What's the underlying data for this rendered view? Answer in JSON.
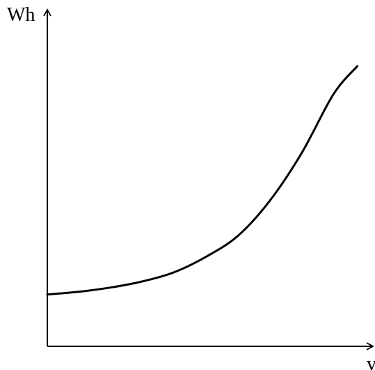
{
  "chart_data": {
    "type": "line",
    "title": "",
    "xlabel": "v",
    "ylabel": "Wh",
    "grid": false,
    "legend": "none",
    "axis_color": "#000000",
    "line_color": "#000000",
    "series": [
      {
        "values": [
          [
            0.0,
            0.185
          ],
          [
            0.1,
            0.195
          ],
          [
            0.2,
            0.21
          ],
          [
            0.3,
            0.232
          ],
          [
            0.4,
            0.265
          ],
          [
            0.5,
            0.32
          ],
          [
            0.6,
            0.395
          ],
          [
            0.7,
            0.52
          ],
          [
            0.8,
            0.69
          ],
          [
            0.9,
            0.9
          ],
          [
            0.975,
            1.0
          ]
        ]
      }
    ]
  }
}
